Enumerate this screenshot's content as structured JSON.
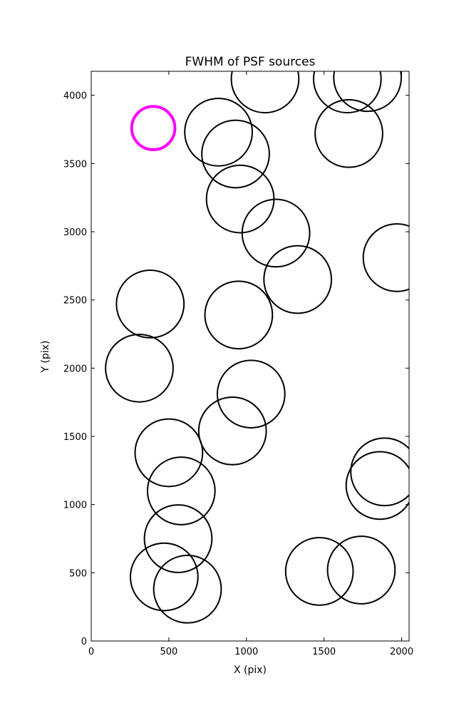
{
  "chart_data": {
    "type": "scatter",
    "title": "FWHM of PSF sources",
    "xlabel": "X (pix)",
    "ylabel": "Y (pix)",
    "xlim": [
      0,
      2048
    ],
    "ylim": [
      0,
      4176
    ],
    "xticks": [
      0,
      500,
      1000,
      1500,
      2000
    ],
    "yticks": [
      0,
      500,
      1000,
      1500,
      2000,
      2500,
      3000,
      3500,
      4000
    ],
    "grid": false,
    "legend": "none",
    "marker": "open circle (radius proportional to FWHM)",
    "sources": [
      {
        "x": 820,
        "y": 3730,
        "radius": 250
      },
      {
        "x": 930,
        "y": 3570,
        "radius": 250
      },
      {
        "x": 960,
        "y": 3240,
        "radius": 250
      },
      {
        "x": 1190,
        "y": 2990,
        "radius": 250
      },
      {
        "x": 1330,
        "y": 2650,
        "radius": 250
      },
      {
        "x": 1120,
        "y": 4120,
        "radius": 250
      },
      {
        "x": 1650,
        "y": 4120,
        "radius": 250
      },
      {
        "x": 1780,
        "y": 4130,
        "radius": 250
      },
      {
        "x": 1660,
        "y": 3720,
        "radius": 250
      },
      {
        "x": 1970,
        "y": 2810,
        "radius": 250
      },
      {
        "x": 380,
        "y": 2470,
        "radius": 250
      },
      {
        "x": 950,
        "y": 2390,
        "radius": 250
      },
      {
        "x": 310,
        "y": 2000,
        "radius": 250
      },
      {
        "x": 1030,
        "y": 1810,
        "radius": 250
      },
      {
        "x": 910,
        "y": 1540,
        "radius": 250
      },
      {
        "x": 500,
        "y": 1380,
        "radius": 250
      },
      {
        "x": 580,
        "y": 1100,
        "radius": 250
      },
      {
        "x": 1890,
        "y": 1240,
        "radius": 250
      },
      {
        "x": 1860,
        "y": 1140,
        "radius": 250
      },
      {
        "x": 560,
        "y": 750,
        "radius": 250
      },
      {
        "x": 470,
        "y": 470,
        "radius": 250
      },
      {
        "x": 620,
        "y": 380,
        "radius": 250
      },
      {
        "x": 1470,
        "y": 510,
        "radius": 250
      },
      {
        "x": 1740,
        "y": 520,
        "radius": 250
      }
    ],
    "reference": {
      "x": 400,
      "y": 3760,
      "radius": 160,
      "color": "#ff00ff"
    },
    "colors": {
      "sources": "#000000",
      "reference": "#ff00ff"
    }
  }
}
